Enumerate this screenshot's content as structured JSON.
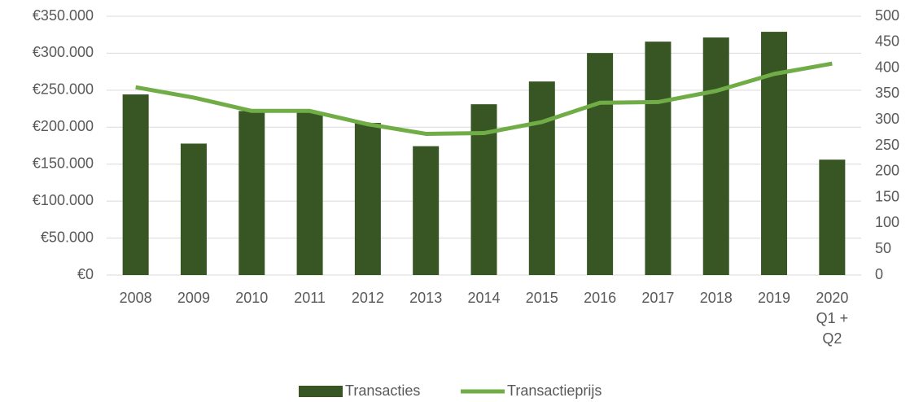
{
  "chart_data": {
    "type": "bar-line",
    "categories": [
      "2008",
      "2009",
      "2010",
      "2011",
      "2012",
      "2013",
      "2014",
      "2015",
      "2016",
      "2017",
      "2018",
      "2019",
      "2020 Q1 + Q2"
    ],
    "series": [
      {
        "name": "Transacties",
        "type": "bar",
        "axis": "y2",
        "color": "#375623",
        "values": [
          349,
          254,
          317,
          314,
          294,
          249,
          330,
          374,
          429,
          451,
          459,
          470,
          223
        ]
      },
      {
        "name": "Transactieprijs",
        "type": "line",
        "axis": "y",
        "color": "#70ad47",
        "values": [
          254000,
          240000,
          222000,
          222000,
          204000,
          191000,
          192000,
          207000,
          233000,
          234000,
          249000,
          272000,
          286000
        ]
      }
    ],
    "ylim": [
      0,
      350000
    ],
    "yticks": [
      {
        "value": 0,
        "label": "€0"
      },
      {
        "value": 50000,
        "label": "€50.000"
      },
      {
        "value": 100000,
        "label": "€100.000"
      },
      {
        "value": 150000,
        "label": "€150.000"
      },
      {
        "value": 200000,
        "label": "€200.000"
      },
      {
        "value": 250000,
        "label": "€250.000"
      },
      {
        "value": 300000,
        "label": "€300.000"
      },
      {
        "value": 350000,
        "label": "€350.000"
      }
    ],
    "y2lim": [
      0,
      500
    ],
    "y2ticks": [
      0,
      50,
      100,
      150,
      200,
      250,
      300,
      350,
      400,
      450,
      500
    ],
    "grid": true,
    "legend": "bottom"
  }
}
